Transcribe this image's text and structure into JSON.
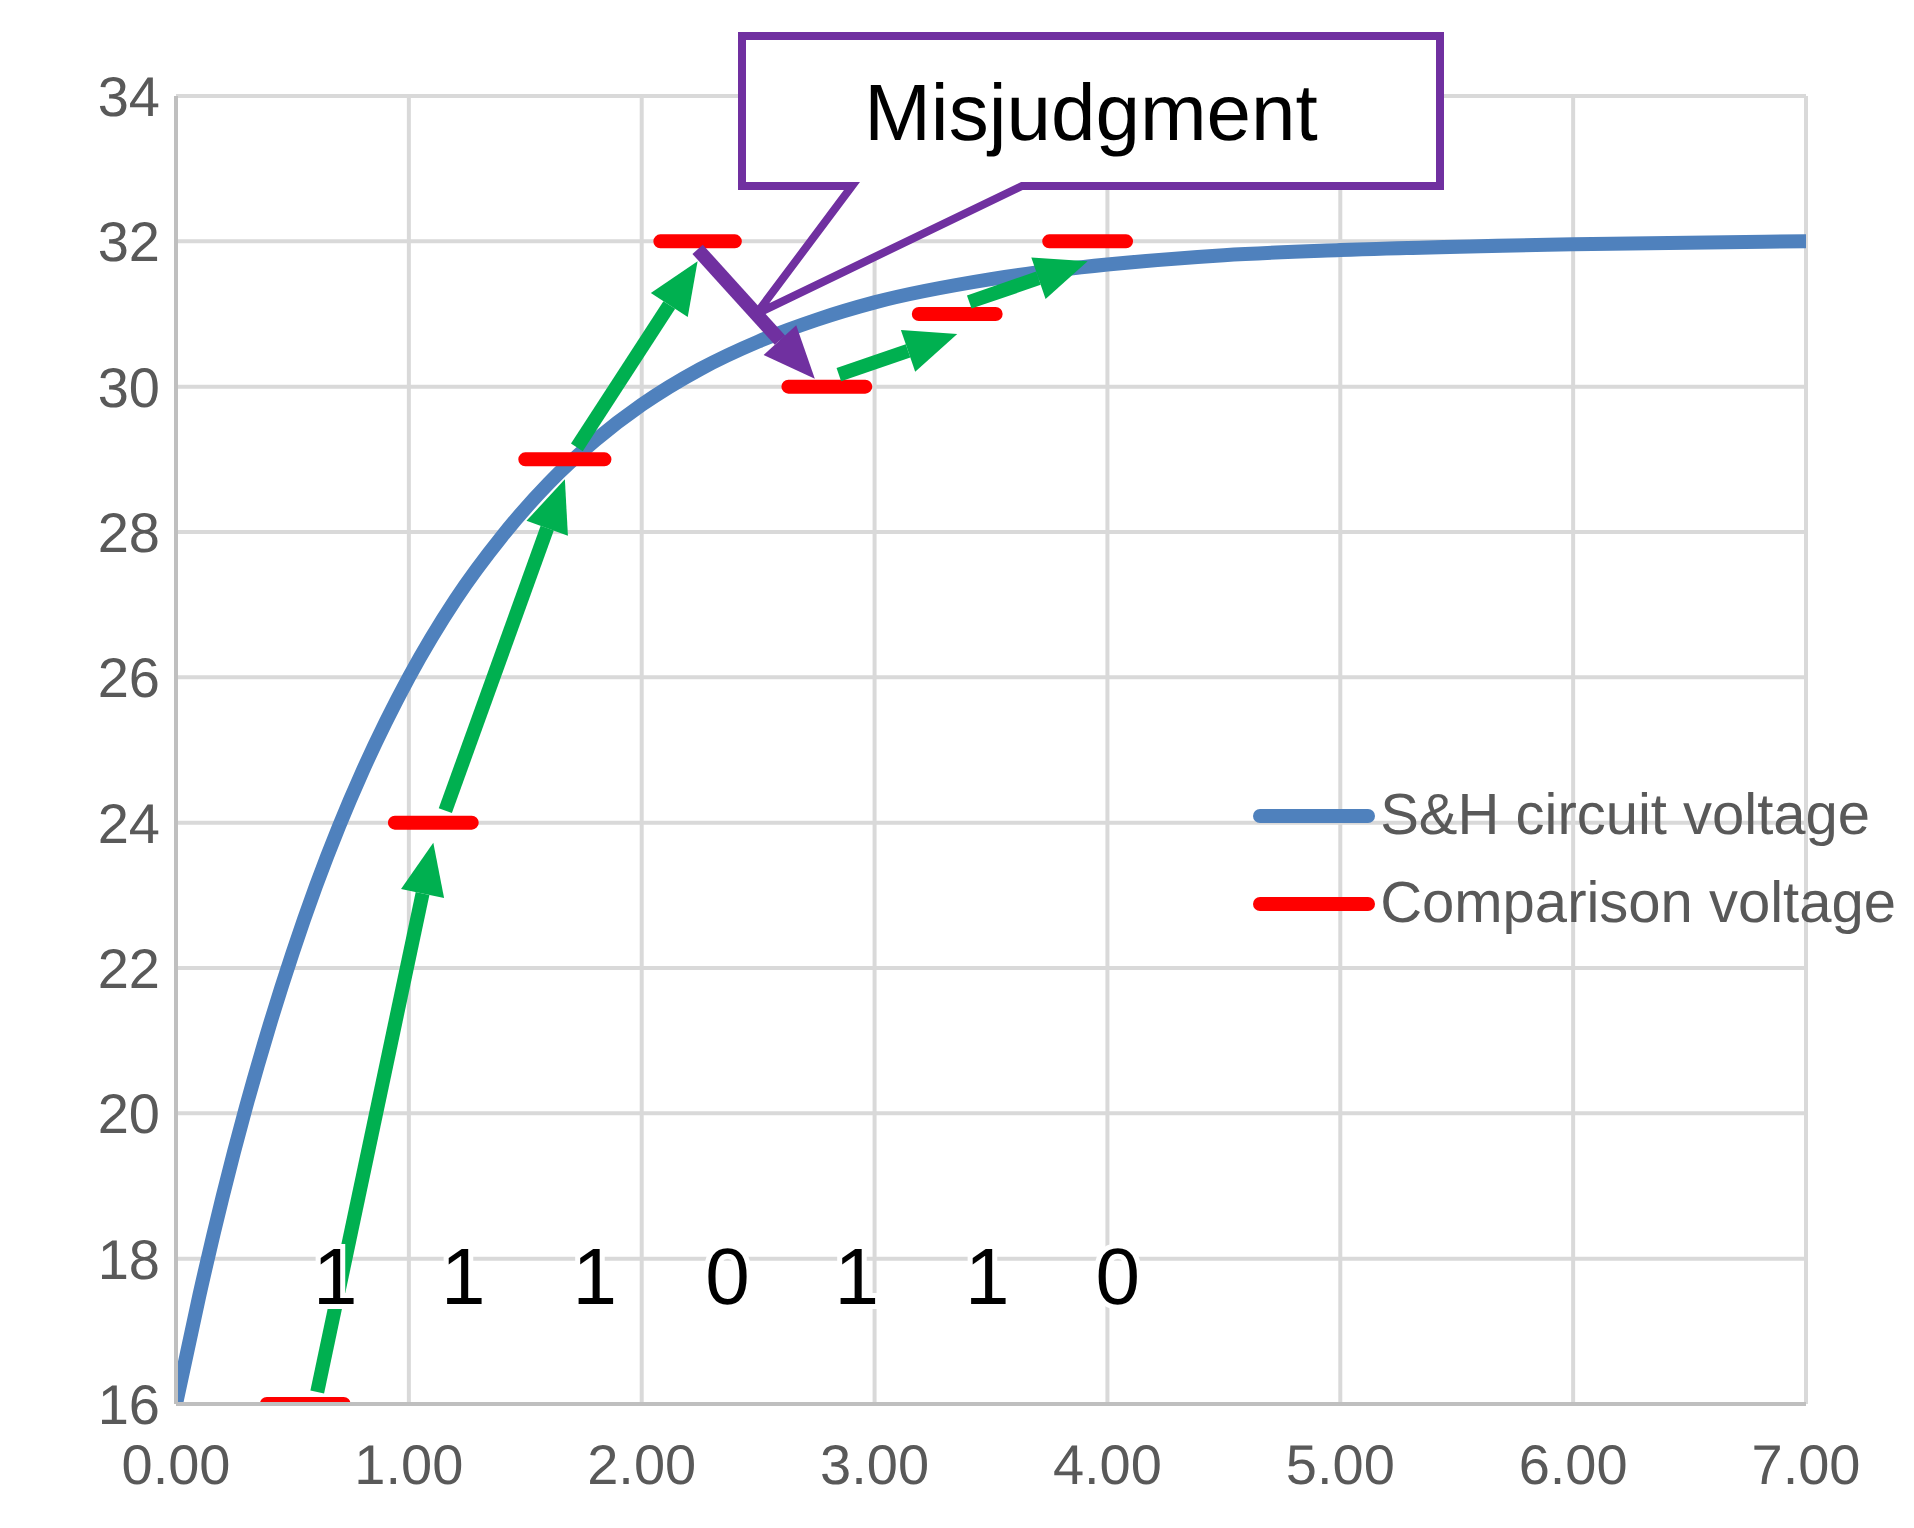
{
  "chart_data": {
    "type": "line",
    "xlim": [
      0,
      7
    ],
    "xticks": [
      {
        "value": 0,
        "label": "0.00"
      },
      {
        "value": 1,
        "label": "1.00"
      },
      {
        "value": 2,
        "label": "2.00"
      },
      {
        "value": 3,
        "label": "3.00"
      },
      {
        "value": 4,
        "label": "4.00"
      },
      {
        "value": 5,
        "label": "5.00"
      },
      {
        "value": 6,
        "label": "6.00"
      },
      {
        "value": 7,
        "label": "7.00"
      }
    ],
    "ylim": [
      16,
      34
    ],
    "yticks": [
      16,
      18,
      20,
      22,
      24,
      26,
      28,
      30,
      32,
      34
    ],
    "grid": true,
    "legend": "right",
    "marker": "none",
    "line_style": "solid",
    "series": [
      {
        "name": "S&H circuit voltage",
        "color": "#4f81bd",
        "x": [
          0,
          0.1,
          0.2,
          0.3,
          0.4,
          0.5,
          0.6,
          0.7,
          0.8,
          0.9,
          1.0,
          1.2,
          1.4,
          1.6,
          1.8,
          2.0,
          2.25,
          2.5,
          2.75,
          3.0,
          3.5,
          4.0,
          4.5,
          5.0,
          6.0,
          7.0
        ],
        "values": [
          16,
          17.49,
          18.85,
          20.08,
          21.19,
          22.2,
          23.12,
          23.95,
          24.7,
          25.38,
          26,
          27.07,
          27.94,
          28.67,
          29.26,
          29.75,
          30.24,
          30.62,
          30.92,
          31.16,
          31.48,
          31.68,
          31.81,
          31.88,
          31.96,
          32
        ]
      },
      {
        "name": "Comparison voltage",
        "color": "#ff0000",
        "x": [
          0.39,
          0.72,
          0.8,
          0.94,
          1.27,
          1.4,
          1.5,
          1.84,
          1.95,
          2.08,
          2.4,
          2.5,
          2.63,
          2.96,
          3.1,
          3.19,
          3.52,
          3.6,
          3.75,
          4.08
        ],
        "values": [
          16,
          16,
          null,
          24,
          24,
          null,
          29,
          29,
          null,
          32,
          32,
          null,
          30,
          30,
          null,
          31,
          31,
          null,
          32,
          32
        ]
      }
    ],
    "annotations": [
      "Misjudgment",
      "1",
      "1",
      "1",
      "0",
      "1",
      "1",
      "0"
    ]
  }
}
